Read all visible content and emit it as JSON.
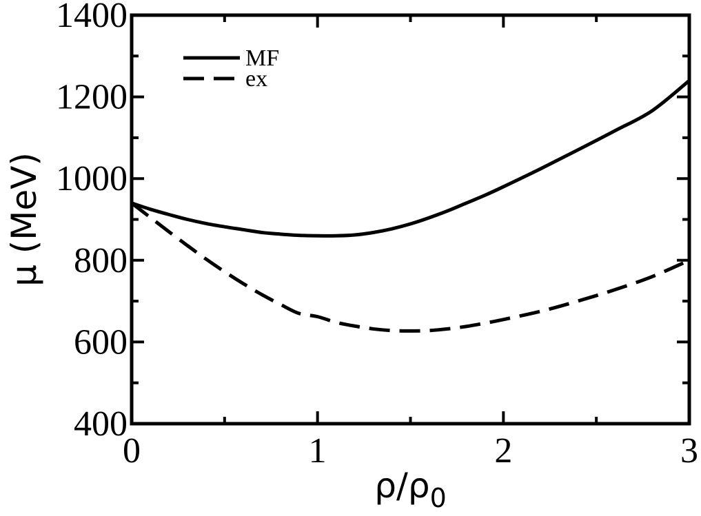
{
  "chart_data": {
    "type": "line",
    "xlabel": "ρ/ρ",
    "xlabel_sub": "0",
    "ylabel": "μ (MeV)",
    "xlim": [
      0,
      3
    ],
    "ylim": [
      400,
      1400
    ],
    "x_ticks": [
      0,
      1,
      2,
      3
    ],
    "x_tick_labels": [
      "0",
      "1",
      "2",
      "3"
    ],
    "y_ticks": [
      400,
      600,
      800,
      1000,
      1200,
      1400
    ],
    "y_tick_labels": [
      "400",
      "600",
      "800",
      "1000",
      "1200",
      "1400"
    ],
    "x_minor_step": 0.5,
    "y_minor_step": 100,
    "grid": false,
    "legend_position": "top-left",
    "series": [
      {
        "name": "MF",
        "style": "solid",
        "color": "#000000",
        "x": [
          0,
          0.1,
          0.2,
          0.3,
          0.4,
          0.5,
          0.6,
          0.7,
          0.8,
          0.9,
          1.0,
          1.1,
          1.2,
          1.3,
          1.4,
          1.5,
          1.6,
          1.7,
          1.8,
          1.9,
          2.0,
          2.2,
          2.4,
          2.6,
          2.8,
          3.0
        ],
        "y": [
          940,
          925,
          912,
          900,
          890,
          882,
          875,
          868,
          864,
          861,
          860,
          860,
          862,
          868,
          877,
          889,
          904,
          921,
          940,
          959,
          980,
          1024,
          1070,
          1117,
          1166,
          1240
        ]
      },
      {
        "name": "ex",
        "style": "dashed",
        "color": "#000000",
        "x": [
          0,
          0.1,
          0.2,
          0.3,
          0.4,
          0.5,
          0.6,
          0.7,
          0.8,
          0.9,
          1.0,
          1.1,
          1.2,
          1.3,
          1.4,
          1.5,
          1.6,
          1.7,
          1.8,
          1.9,
          2.0,
          2.2,
          2.4,
          2.6,
          2.8,
          3.0
        ],
        "y": [
          940,
          905,
          870,
          836,
          803,
          772,
          743,
          716,
          692,
          670,
          662,
          648,
          639,
          632,
          628,
          627,
          628,
          632,
          638,
          646,
          655,
          675,
          700,
          728,
          760,
          800
        ]
      }
    ]
  }
}
